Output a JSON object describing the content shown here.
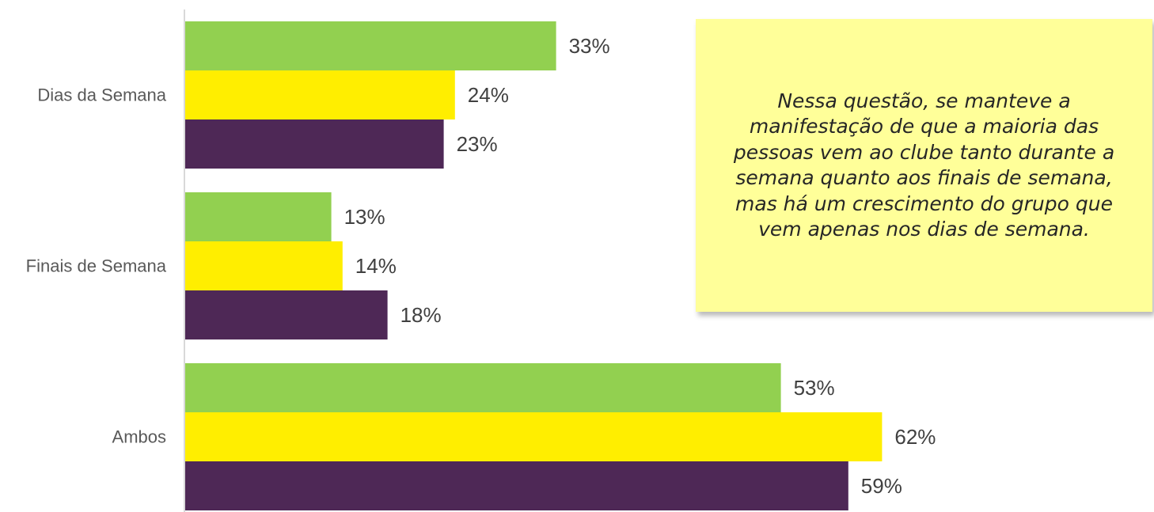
{
  "chart_data": {
    "type": "bar",
    "orientation": "horizontal",
    "categories": [
      "Dias da Semana",
      "Finais de Semana",
      "Ambos"
    ],
    "series": [
      {
        "values": [
          33,
          13,
          53
        ],
        "labels": [
          "33%",
          "13%",
          "53%"
        ],
        "color": "#92d050"
      },
      {
        "values": [
          24,
          14,
          62
        ],
        "labels": [
          "24%",
          "14%",
          "62%"
        ],
        "color": "#ffee00"
      },
      {
        "values": [
          23,
          18,
          59
        ],
        "labels": [
          "23%",
          "18%",
          "59%"
        ],
        "color": "#4e2856"
      }
    ],
    "unit": "%",
    "grid": false,
    "legend": "none"
  },
  "note": {
    "text": "Nessa questão, se manteve a manifestação de que a maioria das pessoas vem ao clube tanto durante a semana quanto aos finais de semana, mas há um crescimento do grupo que vem apenas nos dias de semana."
  }
}
